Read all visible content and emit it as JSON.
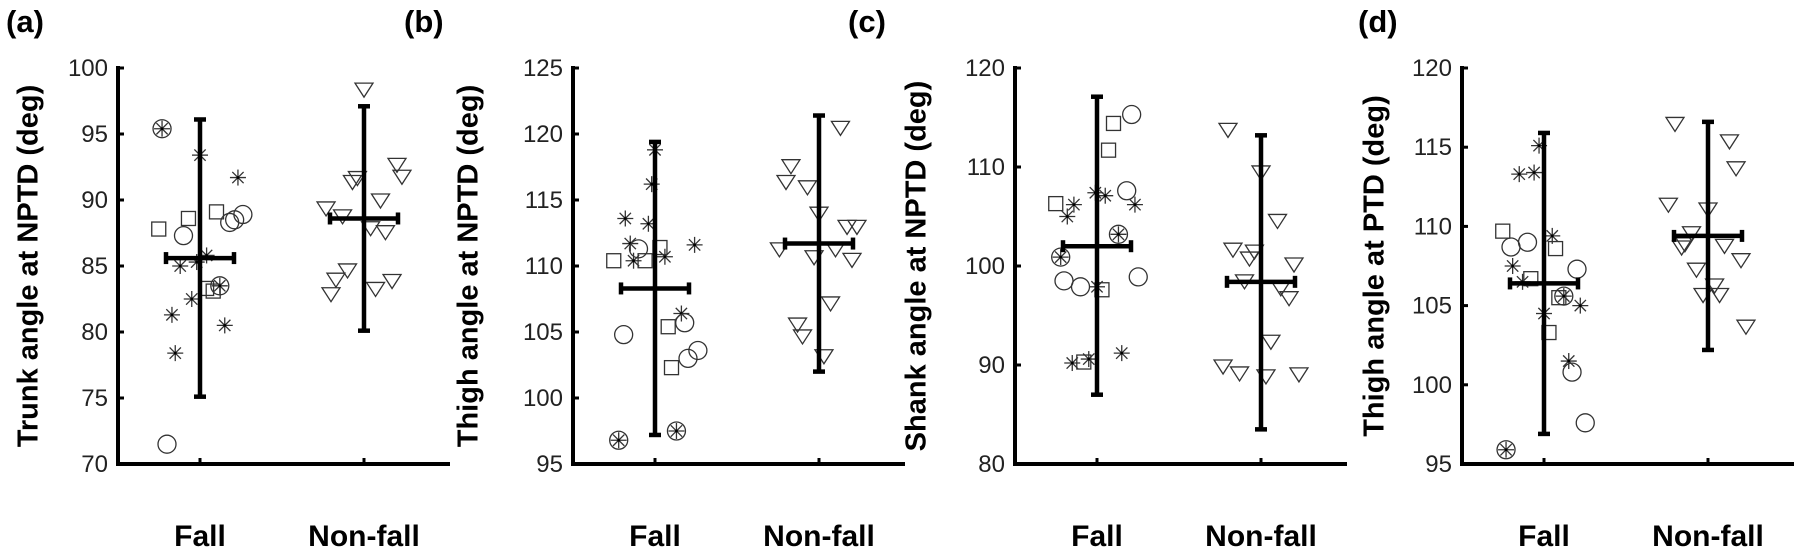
{
  "chart_data": [
    {
      "type": "scatter",
      "panel_label": "(a)",
      "ylabel": "Trunk angle at NPTD (deg)",
      "categories": [
        "Fall",
        "Non-fall"
      ],
      "ylim": [
        70,
        100
      ],
      "yticks": [
        70,
        75,
        80,
        85,
        90,
        95,
        100
      ],
      "grid": false,
      "marker_legend": {
        "*": "asterisk",
        "s": "square",
        "o": "circle",
        "ox": "circle-asterisk",
        "v": "triangle-down"
      },
      "summary": [
        {
          "category": "Fall",
          "mean": 85.6,
          "lower": 75.1,
          "upper": 96.1
        },
        {
          "category": "Non-fall",
          "mean": 88.6,
          "lower": 80.1,
          "upper": 97.1
        }
      ],
      "points": {
        "Fall": [
          [
            -0.23,
            95.4,
            "ox"
          ],
          [
            0,
            93.4,
            "*"
          ],
          [
            0.23,
            91.7,
            "*"
          ],
          [
            0.04,
            85.8,
            "*"
          ],
          [
            -0.12,
            85.0,
            "*"
          ],
          [
            -0.02,
            85.3,
            "*"
          ],
          [
            -0.05,
            82.5,
            "*"
          ],
          [
            -0.17,
            81.3,
            "*"
          ],
          [
            0.15,
            80.5,
            "*"
          ],
          [
            -0.15,
            78.4,
            "*"
          ],
          [
            -0.25,
            87.8,
            "s"
          ],
          [
            -0.07,
            88.6,
            "s"
          ],
          [
            0.1,
            89.1,
            "s"
          ],
          [
            0.04,
            83.3,
            "s"
          ],
          [
            0.08,
            83.1,
            "s"
          ],
          [
            -0.1,
            87.3,
            "o"
          ],
          [
            0.18,
            88.3,
            "o"
          ],
          [
            0.21,
            88.5,
            "o"
          ],
          [
            0.26,
            88.9,
            "o"
          ],
          [
            -0.2,
            71.5,
            "o"
          ],
          [
            0.12,
            83.5,
            "ox"
          ]
        ],
        "Non-fall": [
          [
            0,
            98.4,
            "v"
          ],
          [
            -0.23,
            89.4,
            "v"
          ],
          [
            -0.13,
            88.8,
            "v"
          ],
          [
            -0.07,
            91.4,
            "v"
          ],
          [
            -0.04,
            91.7,
            "v"
          ],
          [
            0.1,
            90.0,
            "v"
          ],
          [
            0.2,
            92.7,
            "v"
          ],
          [
            0.23,
            91.8,
            "v"
          ],
          [
            0.04,
            87.9,
            "v"
          ],
          [
            0.13,
            87.6,
            "v"
          ],
          [
            -0.2,
            82.9,
            "v"
          ],
          [
            -0.17,
            84.0,
            "v"
          ],
          [
            -0.1,
            84.7,
            "v"
          ],
          [
            0.07,
            83.3,
            "v"
          ],
          [
            0.17,
            83.9,
            "v"
          ]
        ]
      }
    },
    {
      "type": "scatter",
      "panel_label": "(b)",
      "ylabel": "Thigh angle at NPTD (deg)",
      "categories": [
        "Fall",
        "Non-fall"
      ],
      "ylim": [
        95,
        125
      ],
      "yticks": [
        95,
        100,
        105,
        110,
        115,
        120,
        125
      ],
      "grid": false,
      "summary": [
        {
          "category": "Fall",
          "mean": 108.3,
          "lower": 97.2,
          "upper": 119.4
        },
        {
          "category": "Non-fall",
          "mean": 111.7,
          "lower": 102.0,
          "upper": 121.4
        }
      ],
      "points": {
        "Fall": [
          [
            0,
            118.8,
            "*"
          ],
          [
            -0.02,
            116.2,
            "*"
          ],
          [
            -0.18,
            113.6,
            "*"
          ],
          [
            -0.04,
            113.2,
            "*"
          ],
          [
            -0.15,
            111.7,
            "*"
          ],
          [
            -0.13,
            110.4,
            "*"
          ],
          [
            0.06,
            110.7,
            "*"
          ],
          [
            0.24,
            111.6,
            "*"
          ],
          [
            0.16,
            106.4,
            "*"
          ],
          [
            -0.25,
            110.4,
            "s"
          ],
          [
            -0.06,
            110.4,
            "s"
          ],
          [
            0.03,
            111.4,
            "s"
          ],
          [
            0.08,
            105.4,
            "s"
          ],
          [
            0.1,
            102.3,
            "s"
          ],
          [
            -0.1,
            111.3,
            "o"
          ],
          [
            -0.19,
            104.8,
            "o"
          ],
          [
            0.18,
            105.7,
            "o"
          ],
          [
            0.2,
            103.0,
            "o"
          ],
          [
            0.26,
            103.6,
            "o"
          ],
          [
            -0.22,
            96.8,
            "ox"
          ],
          [
            0.13,
            97.5,
            "ox"
          ]
        ],
        "Non-fall": [
          [
            0.13,
            120.5,
            "v"
          ],
          [
            -0.17,
            117.6,
            "v"
          ],
          [
            -0.2,
            116.4,
            "v"
          ],
          [
            -0.07,
            116.0,
            "v"
          ],
          [
            0,
            114.0,
            "v"
          ],
          [
            0.17,
            113.0,
            "v"
          ],
          [
            0.23,
            113.0,
            "v"
          ],
          [
            -0.24,
            111.3,
            "v"
          ],
          [
            0.1,
            111.3,
            "v"
          ],
          [
            -0.03,
            110.7,
            "v"
          ],
          [
            0.2,
            110.5,
            "v"
          ],
          [
            0.07,
            107.2,
            "v"
          ],
          [
            -0.13,
            105.6,
            "v"
          ],
          [
            -0.1,
            104.7,
            "v"
          ],
          [
            0.03,
            103.2,
            "v"
          ]
        ]
      }
    },
    {
      "type": "scatter",
      "panel_label": "(c)",
      "ylabel": "Shank angle at NPTD (deg)",
      "categories": [
        "Fall",
        "Non-fall"
      ],
      "ylim": [
        80,
        120
      ],
      "yticks": [
        80,
        90,
        100,
        110,
        120
      ],
      "grid": false,
      "summary": [
        {
          "category": "Fall",
          "mean": 102.0,
          "lower": 87.0,
          "upper": 117.1
        },
        {
          "category": "Non-fall",
          "mean": 98.4,
          "lower": 83.5,
          "upper": 113.2
        }
      ],
      "points": {
        "Fall": [
          [
            0.1,
            114.4,
            "s"
          ],
          [
            0.07,
            111.7,
            "s"
          ],
          [
            -0.25,
            106.3,
            "s"
          ],
          [
            0.03,
            97.6,
            "s"
          ],
          [
            -0.08,
            90.3,
            "s"
          ],
          [
            0.21,
            115.3,
            "o"
          ],
          [
            0.18,
            107.6,
            "o"
          ],
          [
            -0.2,
            98.5,
            "o"
          ],
          [
            -0.1,
            97.9,
            "o"
          ],
          [
            0.25,
            98.9,
            "o"
          ],
          [
            -0.01,
            107.4,
            "*"
          ],
          [
            0.05,
            107.1,
            "*"
          ],
          [
            -0.14,
            106.2,
            "*"
          ],
          [
            -0.18,
            105.0,
            "*"
          ],
          [
            0.23,
            106.2,
            "*"
          ],
          [
            0,
            97.9,
            "*"
          ],
          [
            -0.15,
            90.2,
            "*"
          ],
          [
            -0.05,
            90.6,
            "*"
          ],
          [
            0.15,
            91.2,
            "*"
          ],
          [
            0.13,
            103.2,
            "ox"
          ],
          [
            -0.22,
            100.9,
            "ox"
          ]
        ],
        "Non-fall": [
          [
            -0.2,
            113.8,
            "v"
          ],
          [
            0,
            109.5,
            "v"
          ],
          [
            0.1,
            104.6,
            "v"
          ],
          [
            -0.17,
            101.7,
            "v"
          ],
          [
            -0.04,
            101.5,
            "v"
          ],
          [
            -0.07,
            100.8,
            "v"
          ],
          [
            0.2,
            100.2,
            "v"
          ],
          [
            -0.1,
            98.5,
            "v"
          ],
          [
            0.12,
            97.8,
            "v"
          ],
          [
            0.17,
            96.8,
            "v"
          ],
          [
            0.06,
            92.4,
            "v"
          ],
          [
            -0.23,
            89.9,
            "v"
          ],
          [
            -0.13,
            89.2,
            "v"
          ],
          [
            0.03,
            88.9,
            "v"
          ],
          [
            0.23,
            89.1,
            "v"
          ]
        ]
      }
    },
    {
      "type": "scatter",
      "panel_label": "(d)",
      "ylabel": "Thigh angle at PTD (deg)",
      "categories": [
        "Fall",
        "Non-fall"
      ],
      "ylim": [
        95,
        120
      ],
      "yticks": [
        95,
        100,
        105,
        110,
        115,
        120
      ],
      "grid": false,
      "summary": [
        {
          "category": "Fall",
          "mean": 106.4,
          "lower": 96.9,
          "upper": 115.9
        },
        {
          "category": "Non-fall",
          "mean": 109.4,
          "lower": 102.2,
          "upper": 116.6
        }
      ],
      "points": {
        "Fall": [
          [
            -0.03,
            115.1,
            "*"
          ],
          [
            -0.15,
            113.3,
            "*"
          ],
          [
            -0.06,
            113.4,
            "*"
          ],
          [
            0.05,
            109.4,
            "*"
          ],
          [
            -0.19,
            107.5,
            "*"
          ],
          [
            -0.13,
            106.5,
            "*"
          ],
          [
            0,
            104.5,
            "*"
          ],
          [
            0.22,
            105.0,
            "*"
          ],
          [
            0.15,
            101.5,
            "*"
          ],
          [
            -0.25,
            109.7,
            "s"
          ],
          [
            0.07,
            108.6,
            "s"
          ],
          [
            -0.08,
            106.7,
            "s"
          ],
          [
            0.09,
            105.5,
            "s"
          ],
          [
            0.03,
            103.3,
            "s"
          ],
          [
            -0.1,
            109.0,
            "o"
          ],
          [
            -0.2,
            108.7,
            "o"
          ],
          [
            0.2,
            107.3,
            "o"
          ],
          [
            0.17,
            100.8,
            "o"
          ],
          [
            0.25,
            97.6,
            "o"
          ],
          [
            0.12,
            105.6,
            "ox"
          ],
          [
            -0.23,
            95.9,
            "ox"
          ]
        ],
        "Non-fall": [
          [
            -0.2,
            116.5,
            "v"
          ],
          [
            0.13,
            115.4,
            "v"
          ],
          [
            0.17,
            113.7,
            "v"
          ],
          [
            -0.24,
            111.4,
            "v"
          ],
          [
            0,
            111.1,
            "v"
          ],
          [
            -0.1,
            109.6,
            "v"
          ],
          [
            -0.14,
            108.9,
            "v"
          ],
          [
            -0.16,
            108.7,
            "v"
          ],
          [
            0.1,
            108.8,
            "v"
          ],
          [
            0.2,
            107.9,
            "v"
          ],
          [
            -0.07,
            107.3,
            "v"
          ],
          [
            0.04,
            106.3,
            "v"
          ],
          [
            -0.03,
            105.7,
            "v"
          ],
          [
            0.07,
            105.7,
            "v"
          ],
          [
            0.23,
            103.7,
            "v"
          ]
        ]
      }
    }
  ]
}
